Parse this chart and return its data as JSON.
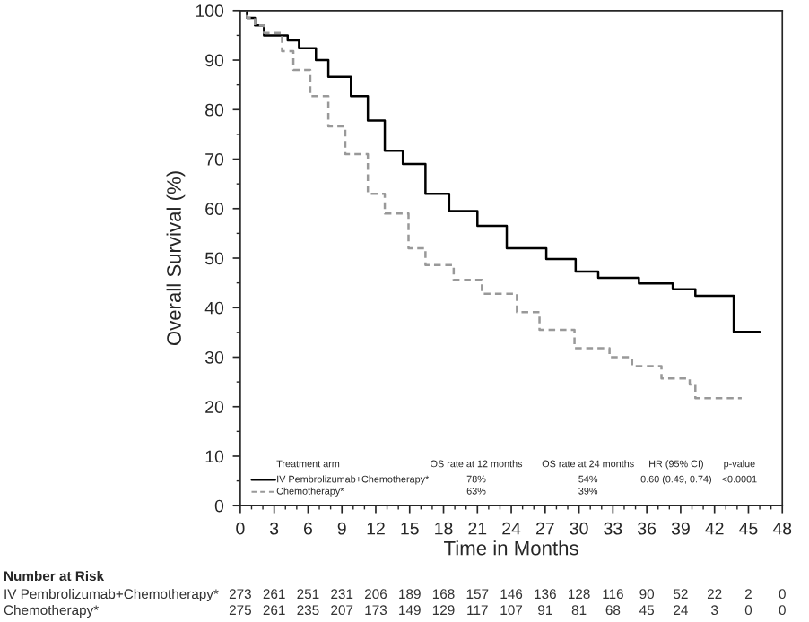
{
  "chart_data": {
    "type": "step",
    "xlabel": "Time in Months",
    "ylabel": "Overall Survival (%)",
    "xlim": [
      0,
      48
    ],
    "xticks": [
      0,
      3,
      6,
      9,
      12,
      15,
      18,
      21,
      24,
      27,
      30,
      33,
      36,
      39,
      42,
      45,
      48
    ],
    "ylim": [
      0,
      100
    ],
    "yticks": [
      0,
      10,
      20,
      30,
      40,
      50,
      60,
      70,
      80,
      90,
      100
    ],
    "grid": false,
    "legend": "bottom left",
    "marker": "none",
    "series": [
      {
        "name": "IV Pembrolizumab+Chemotherapy*",
        "color": "#000000",
        "line_style": "solid",
        "x": [
          0,
          0.6,
          1.3,
          2.1,
          4.2,
          5.2,
          6.7,
          7.8,
          9.8,
          11.3,
          12.8,
          14.4,
          16.4,
          18.5,
          21,
          23.6,
          27.1,
          29.7,
          31.7,
          35.3,
          38.3,
          40.3,
          43.7,
          46
        ],
        "values": [
          100,
          98.5,
          97,
          95,
          94,
          92.4,
          90,
          86.6,
          82.7,
          77.8,
          71.7,
          69,
          63,
          59.5,
          56.5,
          52,
          49.8,
          47.3,
          46,
          44.9,
          43.7,
          42.4,
          35.1,
          35.1
        ]
      },
      {
        "name": "Chemotherapy*",
        "color": "#999999",
        "line_style": "dashed",
        "x": [
          0,
          0.6,
          1.3,
          2.1,
          3.7,
          4.7,
          6.2,
          7.8,
          9.3,
          11.3,
          12.8,
          14.9,
          16.4,
          18.9,
          21.4,
          24.5,
          26.5,
          29.6,
          32.7,
          34.7,
          37.3,
          39.8,
          40.3,
          44.4
        ],
        "values": [
          100,
          98.5,
          97,
          95.5,
          91.8,
          88,
          82.7,
          76.6,
          71,
          63,
          59,
          52,
          48.6,
          45.6,
          42.8,
          39.1,
          35.5,
          31.8,
          30,
          28.2,
          25.7,
          24.5,
          21.7,
          21.7
        ]
      }
    ],
    "annotations": [
      "Treatment arm",
      "OS rate at 12 months",
      "OS rate at 24 months",
      "HR (95% CI)",
      "p-value",
      "78%",
      "54%",
      "0.60 (0.49, 0.74)",
      "<0.0001",
      "63%",
      "39%",
      "Number at Risk",
      "273 261 251 231 206 189 168 157 146 136 128 116 90 52 22 2 0",
      "275 261 235 207 173 149 129 117 107 91 81 68 45 24 3 0 0"
    ]
  }
}
